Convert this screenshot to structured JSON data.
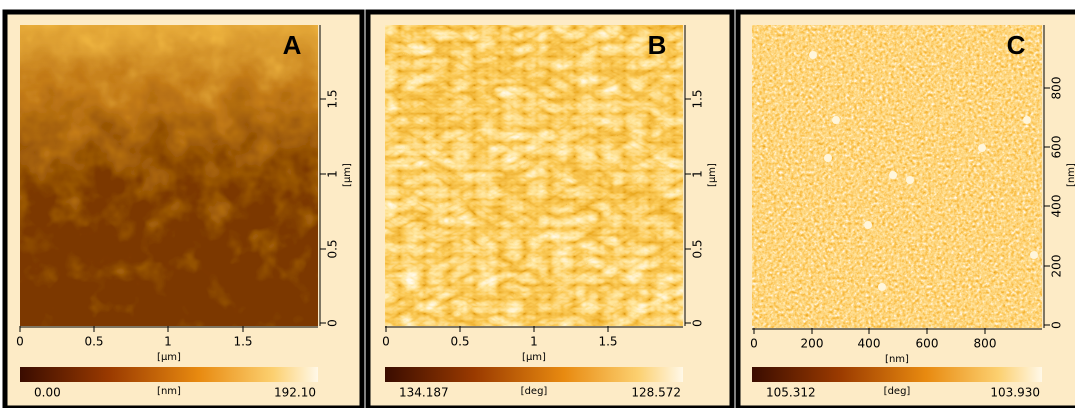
{
  "panels": [
    {
      "label": "A",
      "x_ticks": [
        "0",
        "0.5",
        "1",
        "1.5"
      ],
      "x_unit": "[µm]",
      "y_ticks": [
        "0",
        "0.5",
        "1",
        "1.5"
      ],
      "y_unit": "[µm]",
      "colorbar": {
        "min": "0.00",
        "unit": "[nm]",
        "max": "192.10"
      }
    },
    {
      "label": "B",
      "x_ticks": [
        "0",
        "0.5",
        "1",
        "1.5"
      ],
      "x_unit": "[µm]",
      "y_ticks": [
        "0",
        "0.5",
        "1",
        "1.5"
      ],
      "y_unit": "[µm]",
      "colorbar": {
        "min": "134.187",
        "unit": "[deg]",
        "max": "128.572"
      }
    },
    {
      "label": "C",
      "x_ticks": [
        "0",
        "200",
        "400",
        "600",
        "800"
      ],
      "x_unit": "[nm]",
      "y_ticks": [
        "0",
        "200",
        "400",
        "600",
        "800"
      ],
      "y_unit": "[nm]",
      "colorbar": {
        "min": "105.312",
        "unit": "[deg]",
        "max": "103.930"
      }
    }
  ]
}
